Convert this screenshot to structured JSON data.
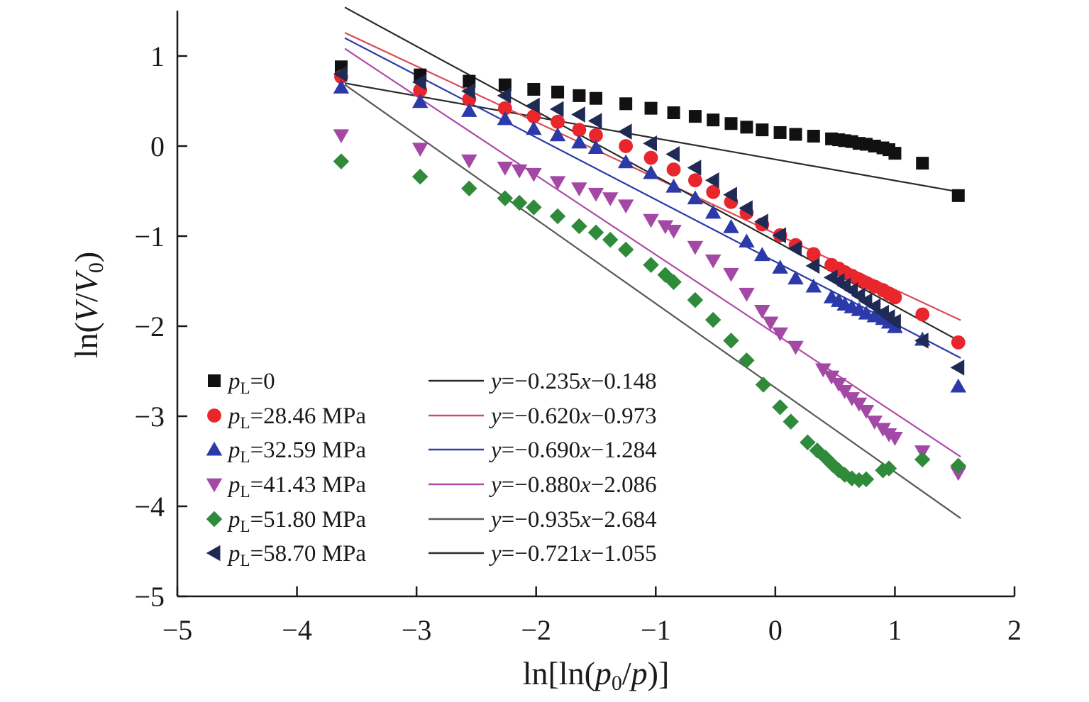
{
  "chart_data": {
    "type": "scatter",
    "xlabel": {
      "pre": "ln[ln(",
      "var1": "p",
      "sub1": "0",
      "mid": "/",
      "var2": "p",
      "post": ")]"
    },
    "ylabel": {
      "pre": "ln(",
      "var1": "V",
      "mid": "/",
      "var2": "V",
      "sub2": "0",
      "post": ")"
    },
    "xlim": [
      -5,
      2
    ],
    "ylim": [
      -5,
      1.5
    ],
    "xticks": [
      -5,
      -4,
      -3,
      -2,
      -1,
      0,
      1,
      2
    ],
    "yticks": [
      -5,
      -4,
      -3,
      -2,
      -1,
      0,
      1
    ],
    "xtick_labels": [
      "−5",
      "−4",
      "−3",
      "−2",
      "−1",
      "0",
      "1",
      "2"
    ],
    "ytick_labels": [
      "−5",
      "−4",
      "−3",
      "−2",
      "−1",
      "0",
      "1"
    ],
    "grid": false,
    "legend_position": "bottom-left",
    "series": [
      {
        "marker": "square",
        "color": "#111111",
        "var": "p",
        "sub": "L",
        "value": "=0",
        "fit": {
          "slope": -0.235,
          "intercept": -0.148,
          "color": "#2b2b2b",
          "label": "y=−0.235x−0.148",
          "x_range": [
            -3.6,
            1.55
          ]
        },
        "points": [
          [
            -3.63,
            0.88
          ],
          [
            -2.97,
            0.79
          ],
          [
            -2.56,
            0.72
          ],
          [
            -2.26,
            0.68
          ],
          [
            -2.02,
            0.63
          ],
          [
            -1.82,
            0.6
          ],
          [
            -1.64,
            0.56
          ],
          [
            -1.5,
            0.53
          ],
          [
            -1.25,
            0.47
          ],
          [
            -1.04,
            0.42
          ],
          [
            -0.85,
            0.37
          ],
          [
            -0.67,
            0.33
          ],
          [
            -0.52,
            0.29
          ],
          [
            -0.37,
            0.25
          ],
          [
            -0.24,
            0.21
          ],
          [
            -0.11,
            0.18
          ],
          [
            0.04,
            0.15
          ],
          [
            0.17,
            0.13
          ],
          [
            0.32,
            0.11
          ],
          [
            0.47,
            0.08
          ],
          [
            0.53,
            0.07
          ],
          [
            0.58,
            0.06
          ],
          [
            0.64,
            0.05
          ],
          [
            0.7,
            0.03
          ],
          [
            0.76,
            0.02
          ],
          [
            0.83,
            0.0
          ],
          [
            0.9,
            -0.02
          ],
          [
            0.95,
            -0.04
          ],
          [
            1.0,
            -0.08
          ],
          [
            1.23,
            -0.19
          ],
          [
            1.53,
            -0.55
          ]
        ]
      },
      {
        "marker": "circle",
        "color": "#e8262b",
        "var": "p",
        "sub": "L",
        "value": "=28.46 MPa",
        "fit": {
          "slope": -0.62,
          "intercept": -0.973,
          "color": "#d84a5a",
          "label": "y=−0.620x−0.973",
          "x_range": [
            -3.6,
            1.55
          ]
        },
        "points": [
          [
            -3.63,
            0.77
          ],
          [
            -2.97,
            0.62
          ],
          [
            -2.56,
            0.52
          ],
          [
            -2.26,
            0.42
          ],
          [
            -2.02,
            0.33
          ],
          [
            -1.82,
            0.27
          ],
          [
            -1.64,
            0.18
          ],
          [
            -1.5,
            0.12
          ],
          [
            -1.25,
            0.0
          ],
          [
            -1.04,
            -0.13
          ],
          [
            -0.85,
            -0.26
          ],
          [
            -0.67,
            -0.38
          ],
          [
            -0.52,
            -0.51
          ],
          [
            -0.37,
            -0.62
          ],
          [
            -0.24,
            -0.74
          ],
          [
            -0.11,
            -0.87
          ],
          [
            0.04,
            -0.99
          ],
          [
            0.17,
            -1.1
          ],
          [
            0.32,
            -1.2
          ],
          [
            0.47,
            -1.32
          ],
          [
            0.53,
            -1.36
          ],
          [
            0.58,
            -1.4
          ],
          [
            0.64,
            -1.44
          ],
          [
            0.7,
            -1.48
          ],
          [
            0.76,
            -1.52
          ],
          [
            0.83,
            -1.56
          ],
          [
            0.9,
            -1.6
          ],
          [
            0.95,
            -1.64
          ],
          [
            1.0,
            -1.68
          ],
          [
            1.23,
            -1.87
          ],
          [
            1.53,
            -2.18
          ]
        ]
      },
      {
        "marker": "triangle-up",
        "color": "#2b3aa8",
        "var": "p",
        "sub": "L",
        "value": "=32.59 MPa",
        "fit": {
          "slope": -0.69,
          "intercept": -1.284,
          "color": "#2b3aa8",
          "label": "y=−0.690x−1.284",
          "x_range": [
            -3.6,
            1.55
          ]
        },
        "points": [
          [
            -3.63,
            0.65
          ],
          [
            -2.97,
            0.49
          ],
          [
            -2.56,
            0.39
          ],
          [
            -2.26,
            0.3
          ],
          [
            -2.02,
            0.19
          ],
          [
            -1.82,
            0.12
          ],
          [
            -1.64,
            0.04
          ],
          [
            -1.5,
            -0.02
          ],
          [
            -1.25,
            -0.18
          ],
          [
            -1.04,
            -0.3
          ],
          [
            -0.85,
            -0.45
          ],
          [
            -0.67,
            -0.58
          ],
          [
            -0.52,
            -0.74
          ],
          [
            -0.37,
            -0.9
          ],
          [
            -0.24,
            -1.06
          ],
          [
            -0.11,
            -1.21
          ],
          [
            0.04,
            -1.35
          ],
          [
            0.17,
            -1.47
          ],
          [
            0.32,
            -1.56
          ],
          [
            0.47,
            -1.68
          ],
          [
            0.53,
            -1.72
          ],
          [
            0.58,
            -1.76
          ],
          [
            0.64,
            -1.79
          ],
          [
            0.7,
            -1.82
          ],
          [
            0.76,
            -1.86
          ],
          [
            0.83,
            -1.89
          ],
          [
            0.9,
            -1.92
          ],
          [
            0.95,
            -1.96
          ],
          [
            1.0,
            -2.01
          ],
          [
            1.23,
            -2.15
          ],
          [
            1.53,
            -2.67
          ]
        ]
      },
      {
        "marker": "triangle-down",
        "color": "#a448a6",
        "var": "p",
        "sub": "L",
        "value": "=41.43 MPa",
        "fit": {
          "slope": -0.88,
          "intercept": -2.086,
          "color": "#b04aaa",
          "label": "y=−0.880x−2.086",
          "x_range": [
            -3.6,
            1.55
          ]
        },
        "points": [
          [
            -3.63,
            0.12
          ],
          [
            -2.97,
            -0.03
          ],
          [
            -2.56,
            -0.16
          ],
          [
            -2.26,
            -0.24
          ],
          [
            -2.14,
            -0.27
          ],
          [
            -2.02,
            -0.31
          ],
          [
            -1.82,
            -0.4
          ],
          [
            -1.64,
            -0.47
          ],
          [
            -1.5,
            -0.53
          ],
          [
            -1.38,
            -0.58
          ],
          [
            -1.25,
            -0.66
          ],
          [
            -1.04,
            -0.82
          ],
          [
            -0.92,
            -0.89
          ],
          [
            -0.85,
            -0.94
          ],
          [
            -0.67,
            -1.12
          ],
          [
            -0.52,
            -1.27
          ],
          [
            -0.37,
            -1.42
          ],
          [
            -0.24,
            -1.64
          ],
          [
            -0.11,
            -1.83
          ],
          [
            -0.04,
            -1.96
          ],
          [
            0.04,
            -2.08
          ],
          [
            0.17,
            -2.23
          ],
          [
            0.4,
            -2.48
          ],
          [
            0.47,
            -2.56
          ],
          [
            0.53,
            -2.64
          ],
          [
            0.58,
            -2.72
          ],
          [
            0.64,
            -2.8
          ],
          [
            0.7,
            -2.86
          ],
          [
            0.76,
            -2.94
          ],
          [
            0.83,
            -3.06
          ],
          [
            0.9,
            -3.14
          ],
          [
            0.95,
            -3.2
          ],
          [
            1.0,
            -3.24
          ],
          [
            1.23,
            -3.39
          ],
          [
            1.53,
            -3.63
          ]
        ]
      },
      {
        "marker": "diamond",
        "color": "#2f8a3a",
        "var": "p",
        "sub": "L",
        "value": "=51.80 MPa",
        "fit": {
          "slope": -0.935,
          "intercept": -2.684,
          "color": "#585858",
          "label": "y=−0.935x−2.684",
          "x_range": [
            -3.6,
            1.55
          ]
        },
        "points": [
          [
            -3.63,
            -0.17
          ],
          [
            -2.97,
            -0.34
          ],
          [
            -2.56,
            -0.47
          ],
          [
            -2.26,
            -0.58
          ],
          [
            -2.14,
            -0.63
          ],
          [
            -2.02,
            -0.68
          ],
          [
            -1.82,
            -0.78
          ],
          [
            -1.64,
            -0.89
          ],
          [
            -1.5,
            -0.96
          ],
          [
            -1.38,
            -1.04
          ],
          [
            -1.25,
            -1.15
          ],
          [
            -1.04,
            -1.32
          ],
          [
            -0.92,
            -1.43
          ],
          [
            -0.85,
            -1.51
          ],
          [
            -0.67,
            -1.71
          ],
          [
            -0.52,
            -1.93
          ],
          [
            -0.37,
            -2.16
          ],
          [
            -0.24,
            -2.38
          ],
          [
            -0.1,
            -2.65
          ],
          [
            0.04,
            -2.9
          ],
          [
            0.13,
            -3.06
          ],
          [
            0.27,
            -3.29
          ],
          [
            0.35,
            -3.38
          ],
          [
            0.42,
            -3.46
          ],
          [
            0.48,
            -3.54
          ],
          [
            0.53,
            -3.6
          ],
          [
            0.58,
            -3.65
          ],
          [
            0.64,
            -3.69
          ],
          [
            0.7,
            -3.71
          ],
          [
            0.76,
            -3.7
          ],
          [
            0.9,
            -3.6
          ],
          [
            0.95,
            -3.58
          ],
          [
            1.23,
            -3.48
          ],
          [
            1.53,
            -3.55
          ]
        ]
      },
      {
        "marker": "triangle-left",
        "color": "#1f2b55",
        "var": "p",
        "sub": "L",
        "value": "=58.70 MPa",
        "fit": {
          "slope": -0.721,
          "intercept": -1.055,
          "color": "#2b2b2b",
          "label": "y=−0.721x−1.055",
          "x_range": [
            -3.6,
            1.55
          ]
        },
        "points": [
          [
            -3.63,
            0.8
          ],
          [
            -2.97,
            0.71
          ],
          [
            -2.56,
            0.61
          ],
          [
            -2.26,
            0.56
          ],
          [
            -2.02,
            0.45
          ],
          [
            -1.82,
            0.41
          ],
          [
            -1.64,
            0.35
          ],
          [
            -1.5,
            0.28
          ],
          [
            -1.25,
            0.16
          ],
          [
            -1.04,
            0.03
          ],
          [
            -0.85,
            -0.09
          ],
          [
            -0.67,
            -0.24
          ],
          [
            -0.52,
            -0.38
          ],
          [
            -0.37,
            -0.54
          ],
          [
            -0.24,
            -0.69
          ],
          [
            -0.11,
            -0.84
          ],
          [
            0.04,
            -0.99
          ],
          [
            0.17,
            -1.14
          ],
          [
            0.32,
            -1.33
          ],
          [
            0.47,
            -1.46
          ],
          [
            0.53,
            -1.5
          ],
          [
            0.58,
            -1.55
          ],
          [
            0.64,
            -1.6
          ],
          [
            0.7,
            -1.66
          ],
          [
            0.76,
            -1.72
          ],
          [
            0.83,
            -1.78
          ],
          [
            0.9,
            -1.85
          ],
          [
            0.95,
            -1.9
          ],
          [
            1.0,
            -1.95
          ],
          [
            1.23,
            -2.16
          ],
          [
            1.53,
            -2.46
          ]
        ]
      }
    ]
  }
}
